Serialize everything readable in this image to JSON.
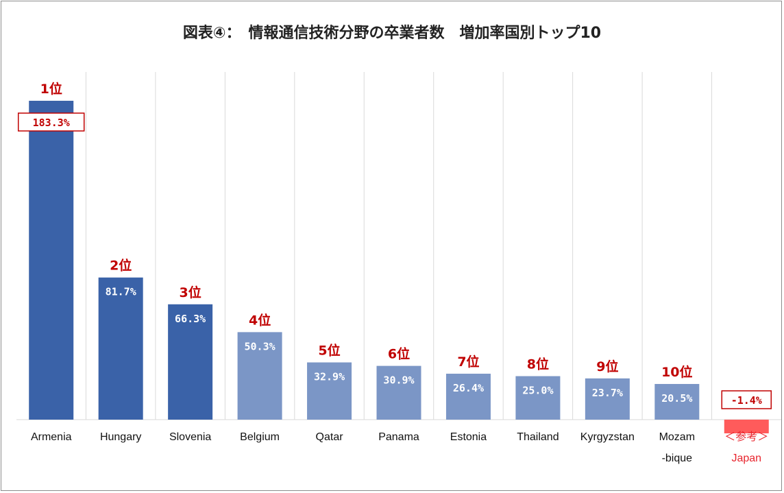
{
  "title": "図表④：　情報通信技術分野の卒業者数　増加率国別トップ10",
  "chart_data": {
    "type": "bar",
    "title": "図表④：　情報通信技術分野の卒業者数　増加率国別トップ10",
    "xlabel": "",
    "ylabel": "",
    "ylim": [
      -5,
      200
    ],
    "grid": "vertical",
    "categories": [
      {
        "line1": "Armenia",
        "line2": ""
      },
      {
        "line1": "Hungary",
        "line2": ""
      },
      {
        "line1": "Slovenia",
        "line2": ""
      },
      {
        "line1": "Belgium",
        "line2": ""
      },
      {
        "line1": "Qatar",
        "line2": ""
      },
      {
        "line1": "Panama",
        "line2": ""
      },
      {
        "line1": "Estonia",
        "line2": ""
      },
      {
        "line1": "Thailand",
        "line2": ""
      },
      {
        "line1": "Kyrgyzstan",
        "line2": ""
      },
      {
        "line1": "Mozam",
        "line2": "-bique"
      },
      {
        "line1": "＜参考＞",
        "line2": "Japan"
      }
    ],
    "values": [
      183.3,
      81.7,
      66.3,
      50.3,
      32.9,
      30.9,
      26.4,
      25.0,
      23.7,
      20.5,
      -1.4
    ],
    "value_labels": [
      "183.3%",
      "81.7%",
      "66.3%",
      "50.3%",
      "32.9%",
      "30.9%",
      "26.4%",
      "25.0%",
      "23.7%",
      "20.5%",
      "-1.4%"
    ],
    "rank_labels": [
      "1位",
      "2位",
      "3位",
      "4位",
      "5位",
      "6位",
      "7位",
      "8位",
      "9位",
      "10位",
      ""
    ],
    "colors": {
      "top3": "#3a62a8",
      "others": "#7b96c6",
      "reference": "#ff5b5b",
      "rank_text": "#c00000",
      "reference_text": "#e8252e",
      "grid": "#d9d9d9",
      "baseline": "#d9d9d9"
    }
  }
}
